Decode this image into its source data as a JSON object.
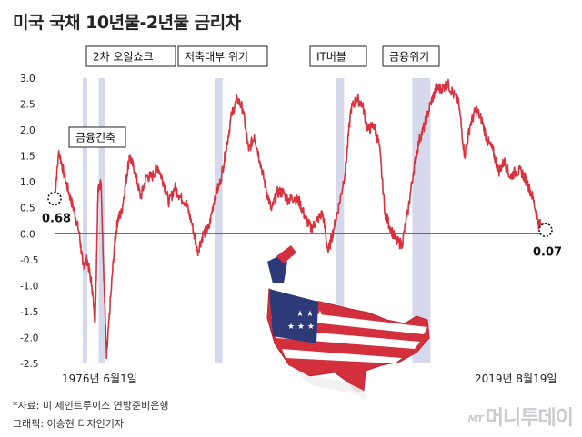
{
  "title": "미국 국채 10년물-2년물 금리차",
  "source": "*자료: 미 세인트루이스 연방준비은행",
  "credit": "그래픽: 이승현 디자인기자",
  "watermark": {
    "brand": "MT",
    "name": "머니투데이"
  },
  "colors": {
    "line": "#d8323f",
    "band": "#c8cbe6",
    "zero_line": "#444444",
    "text": "#222222"
  },
  "chart_data": {
    "type": "line",
    "x_start_label": "1976년 6월1일",
    "x_end_label": "2019년 8월19일",
    "x_range": [
      1976.42,
      2019.63
    ],
    "ylim": [
      -2.5,
      3.0
    ],
    "yticks": [
      3.0,
      2.5,
      2.0,
      1.5,
      1.0,
      0.5,
      0.0,
      -0.5,
      -1.0,
      -1.5,
      -2.0,
      -2.5
    ],
    "ytick_labels": [
      "3.0",
      "2.5",
      "2.0",
      "1.5",
      "1.0",
      "0.5",
      "0.0",
      "-0.5",
      "-1.0",
      "-1.5",
      "-2.0",
      "-2.5"
    ],
    "grid": false,
    "series": [
      {
        "x": [
          1976.42,
          1976.8,
          1977.3,
          1977.8,
          1978.2,
          1978.6,
          1978.9,
          1979.3,
          1979.7,
          1980.0,
          1980.25,
          1980.5,
          1980.8,
          1981.0,
          1981.3,
          1981.7,
          1982.0,
          1982.3,
          1982.7,
          1983.0,
          1983.5,
          1984.0,
          1984.5,
          1985.0,
          1985.5,
          1986.0,
          1986.5,
          1987.0,
          1987.5,
          1988.0,
          1988.5,
          1989.0,
          1989.5,
          1990.0,
          1990.5,
          1991.0,
          1991.5,
          1992.0,
          1992.5,
          1993.0,
          1993.5,
          1994.0,
          1994.5,
          1995.0,
          1995.5,
          1996.0,
          1996.5,
          1997.0,
          1997.5,
          1998.0,
          1998.5,
          1999.0,
          1999.5,
          2000.0,
          2000.5,
          2001.0,
          2001.5,
          2002.0,
          2002.5,
          2003.0,
          2003.5,
          2004.0,
          2004.5,
          2005.0,
          2005.5,
          2006.0,
          2006.5,
          2007.0,
          2007.5,
          2008.0,
          2008.5,
          2009.0,
          2009.5,
          2010.0,
          2010.5,
          2011.0,
          2011.5,
          2012.0,
          2012.5,
          2013.0,
          2013.5,
          2014.0,
          2014.5,
          2015.0,
          2015.5,
          2016.0,
          2016.5,
          2017.0,
          2017.5,
          2018.0,
          2018.5,
          2019.0,
          2019.3,
          2019.63
        ],
        "y": [
          0.68,
          1.6,
          1.1,
          0.7,
          0.4,
          0.0,
          -0.6,
          -0.5,
          -1.0,
          -1.7,
          0.9,
          1.0,
          -1.1,
          -2.4,
          -1.4,
          -0.2,
          0.3,
          0.4,
          1.0,
          1.5,
          1.2,
          0.7,
          1.1,
          1.1,
          1.3,
          1.0,
          0.6,
          0.9,
          0.7,
          0.6,
          0.2,
          -0.35,
          0.0,
          0.1,
          0.7,
          1.0,
          1.6,
          2.3,
          2.6,
          2.4,
          1.6,
          1.9,
          1.4,
          0.9,
          0.45,
          0.8,
          0.8,
          0.65,
          0.7,
          0.6,
          0.3,
          0.1,
          0.25,
          0.4,
          -0.35,
          0.1,
          0.6,
          1.2,
          2.4,
          2.6,
          2.5,
          2.0,
          2.1,
          1.7,
          0.4,
          0.1,
          -0.15,
          -0.2,
          0.4,
          1.2,
          1.8,
          2.1,
          2.5,
          2.8,
          2.8,
          2.9,
          2.7,
          2.5,
          1.5,
          2.1,
          2.4,
          2.2,
          1.8,
          1.6,
          1.2,
          1.4,
          1.1,
          1.2,
          1.2,
          1.0,
          0.7,
          0.2,
          0.15,
          0.07
        ]
      }
    ],
    "annotations": [
      {
        "label": "금융긴축",
        "period": [
          1978.9,
          1979.1
        ]
      },
      {
        "label": "2차 오일쇼크",
        "period": [
          1980.3,
          1980.9
        ]
      },
      {
        "label": "저축대부 위기",
        "period": [
          1990.5,
          1991.2
        ]
      },
      {
        "label": "IT버블",
        "period": [
          2001.2,
          2001.9
        ]
      },
      {
        "label": "금융위기",
        "period": [
          2007.9,
          2009.5
        ]
      }
    ],
    "point_labels": [
      {
        "label": "0.68",
        "x": 1976.42,
        "y": 0.68
      },
      {
        "label": "0.07",
        "x": 2019.63,
        "y": 0.07
      }
    ]
  }
}
